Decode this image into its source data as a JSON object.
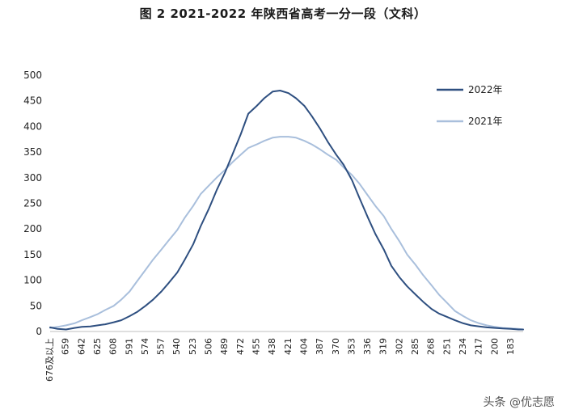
{
  "chart_data": {
    "type": "line",
    "title": "图 2 2021-2022 年陕西省高考一分一段（文科）",
    "xlabel": "",
    "ylabel": "",
    "ylim": [
      0,
      500
    ],
    "yticks": [
      0,
      50,
      100,
      150,
      200,
      250,
      300,
      350,
      400,
      450,
      500
    ],
    "x_reversed": true,
    "x_first_label": "676及以上",
    "x_ticks": [
      676,
      659,
      642,
      625,
      608,
      591,
      574,
      557,
      540,
      523,
      506,
      489,
      472,
      455,
      438,
      421,
      404,
      387,
      370,
      353,
      336,
      319,
      302,
      285,
      268,
      251,
      234,
      217,
      200,
      183
    ],
    "x_tick_labels": [
      "676及以上",
      "659",
      "642",
      "625",
      "608",
      "591",
      "574",
      "557",
      "540",
      "523",
      "506",
      "489",
      "472",
      "455",
      "438",
      "421",
      "404",
      "387",
      "370",
      "353",
      "336",
      "319",
      "302",
      "285",
      "268",
      "251",
      "234",
      "217",
      "200",
      "183"
    ],
    "xlim": [
      676,
      170
    ],
    "grid": false,
    "legend_position": "top-right",
    "series": [
      {
        "name": "2022年",
        "color": "#2e4f80",
        "x": [
          676,
          668,
          659,
          650,
          642,
          633,
          625,
          617,
          608,
          600,
          591,
          583,
          574,
          566,
          557,
          549,
          540,
          532,
          523,
          515,
          506,
          498,
          489,
          481,
          472,
          464,
          455,
          447,
          438,
          430,
          421,
          413,
          404,
          396,
          387,
          379,
          370,
          362,
          353,
          345,
          336,
          328,
          319,
          311,
          302,
          294,
          285,
          277,
          268,
          260,
          251,
          243,
          234,
          226,
          217,
          209,
          200,
          192,
          183,
          175,
          170
        ],
        "y": [
          8,
          5,
          4,
          7,
          9,
          10,
          12,
          14,
          18,
          22,
          30,
          38,
          50,
          62,
          78,
          95,
          115,
          140,
          170,
          205,
          240,
          275,
          310,
          345,
          385,
          425,
          440,
          455,
          468,
          470,
          465,
          455,
          440,
          420,
          395,
          370,
          345,
          325,
          295,
          260,
          222,
          190,
          160,
          128,
          105,
          88,
          72,
          58,
          44,
          35,
          28,
          22,
          16,
          12,
          10,
          8,
          7,
          6,
          5,
          4,
          4
        ]
      },
      {
        "name": "2021年",
        "color": "#a9bfdc",
        "x": [
          676,
          668,
          659,
          650,
          642,
          633,
          625,
          617,
          608,
          600,
          591,
          583,
          574,
          566,
          557,
          549,
          540,
          532,
          523,
          515,
          506,
          498,
          489,
          481,
          472,
          464,
          455,
          447,
          438,
          430,
          421,
          413,
          404,
          396,
          387,
          379,
          370,
          362,
          353,
          345,
          336,
          328,
          319,
          311,
          302,
          294,
          285,
          277,
          268,
          260,
          251,
          243,
          234,
          226,
          217,
          209,
          200,
          192,
          183,
          175,
          170
        ],
        "y": [
          7,
          9,
          12,
          16,
          22,
          28,
          34,
          42,
          50,
          62,
          78,
          98,
          120,
          140,
          160,
          178,
          198,
          222,
          245,
          268,
          285,
          300,
          315,
          330,
          345,
          358,
          365,
          372,
          378,
          380,
          380,
          378,
          372,
          365,
          355,
          345,
          335,
          320,
          305,
          288,
          265,
          245,
          225,
          200,
          175,
          150,
          130,
          110,
          90,
          72,
          55,
          40,
          30,
          22,
          16,
          12,
          9,
          7,
          6,
          5,
          4
        ]
      }
    ]
  },
  "caption": "头条 @优志愿"
}
